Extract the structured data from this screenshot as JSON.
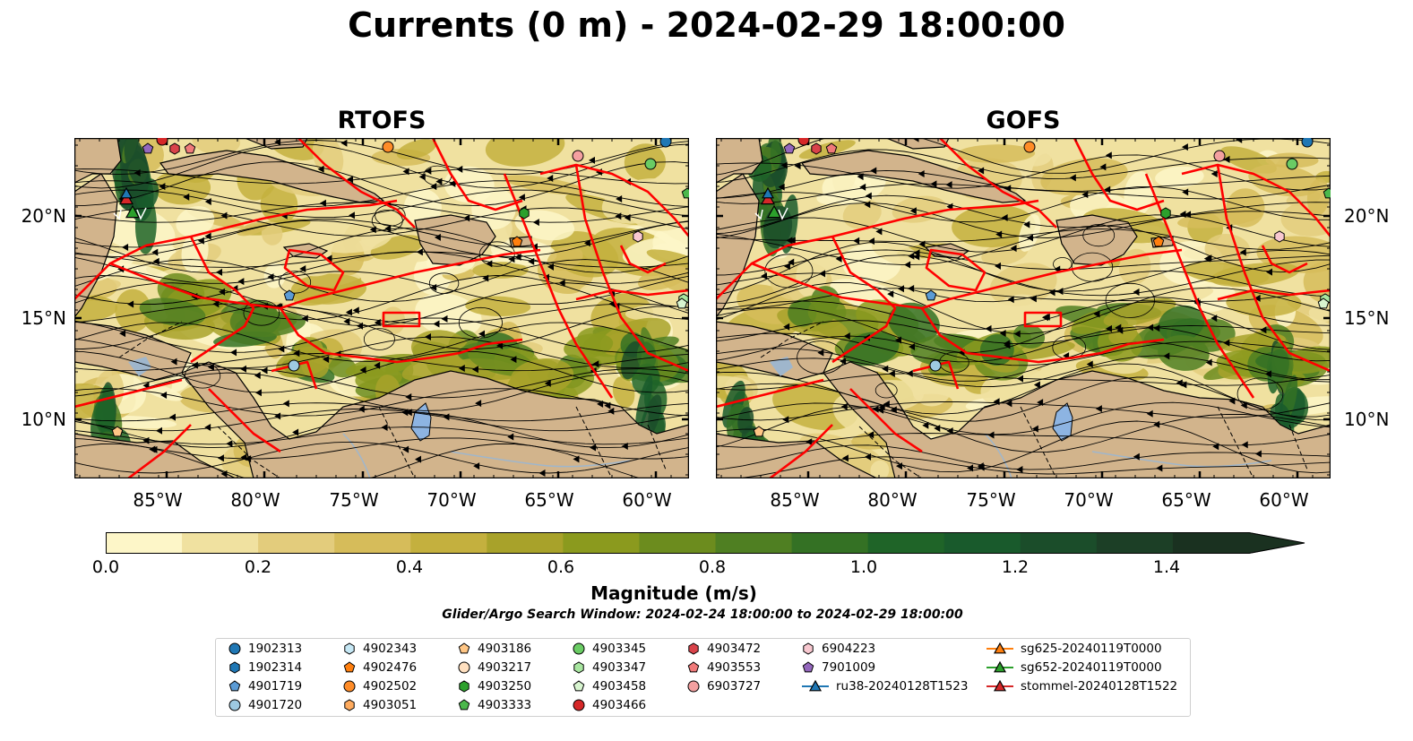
{
  "title": "Currents (0 m) - 2024-02-29 18:00:00",
  "panels": [
    {
      "name": "RTOFS"
    },
    {
      "name": "GOFS"
    }
  ],
  "lat_labels": [
    "20°N",
    "15°N",
    "10°N"
  ],
  "lon_labels": [
    "85°W",
    "80°W",
    "75°W",
    "70°W",
    "65°W",
    "60°W"
  ],
  "colorbar": {
    "label": "Magnitude (m/s)",
    "ticks": [
      "0.0",
      "0.2",
      "0.4",
      "0.6",
      "0.8",
      "1.0",
      "1.2",
      "1.4"
    ],
    "min": 0.0,
    "max": 1.5,
    "extend": "max",
    "colors": [
      "#fdf6c8",
      "#f0e1a0",
      "#e3cc7c",
      "#d6bc5a",
      "#c4b03e",
      "#a8a22a",
      "#8b9a1e",
      "#6c8c1e",
      "#4f7f22",
      "#347124",
      "#1f6428",
      "#195a2c",
      "#1b4d2a",
      "#1c3f26",
      "#1a3120"
    ]
  },
  "map_colors": {
    "land": "#d2b48c",
    "eez_lines": "#ff0000",
    "lake": "#8db4e2"
  },
  "subtitle": "Glider/Argo Search Window: 2024-02-24 18:00:00 to 2024-02-29 18:00:00",
  "legend": [
    {
      "label": "1902313",
      "marker": "circle",
      "color": "#1f77b4"
    },
    {
      "label": "1902314",
      "marker": "hexagon",
      "color": "#1f77b4"
    },
    {
      "label": "4901719",
      "marker": "pentagon",
      "color": "#5b9bd5"
    },
    {
      "label": "4901720",
      "marker": "circle",
      "color": "#9ecae1"
    },
    {
      "label": "4902343",
      "marker": "hexagon",
      "color": "#c6e8f5"
    },
    {
      "label": "4902476",
      "marker": "pentagon",
      "color": "#ff7f0e"
    },
    {
      "label": "4902502",
      "marker": "circle",
      "color": "#ff8c28"
    },
    {
      "label": "4903051",
      "marker": "hexagon",
      "color": "#ffab5e"
    },
    {
      "label": "4903186",
      "marker": "pentagon",
      "color": "#ffc685"
    },
    {
      "label": "4903217",
      "marker": "circle",
      "color": "#ffe0c0"
    },
    {
      "label": "4903250",
      "marker": "hexagon",
      "color": "#2ca02c"
    },
    {
      "label": "4903333",
      "marker": "pentagon",
      "color": "#4cb84c"
    },
    {
      "label": "4903345",
      "marker": "circle",
      "color": "#6acc64"
    },
    {
      "label": "4903347",
      "marker": "hexagon",
      "color": "#a8e6a0"
    },
    {
      "label": "4903458",
      "marker": "pentagon",
      "color": "#d8f5d0"
    },
    {
      "label": "4903466",
      "marker": "circle",
      "color": "#d62728"
    },
    {
      "label": "4903472",
      "marker": "hexagon",
      "color": "#d9434a"
    },
    {
      "label": "4903553",
      "marker": "pentagon",
      "color": "#f07a7a"
    },
    {
      "label": "6903727",
      "marker": "circle",
      "color": "#f4a0a0"
    },
    {
      "label": "6904223",
      "marker": "hexagon",
      "color": "#f8c8d0"
    },
    {
      "label": "7901009",
      "marker": "pentagon",
      "color": "#9467bd"
    },
    {
      "label": "ru38-20240128T1523",
      "marker": "triangle-line",
      "color": "#1f77b4"
    },
    {
      "label": "sg625-20240119T0000",
      "marker": "triangle-line",
      "color": "#ff7f0e"
    },
    {
      "label": "sg652-20240119T0000",
      "marker": "triangle-line",
      "color": "#2ca02c"
    },
    {
      "label": "stommel-20240128T1522",
      "marker": "triangle-line",
      "color": "#d62728"
    }
  ]
}
